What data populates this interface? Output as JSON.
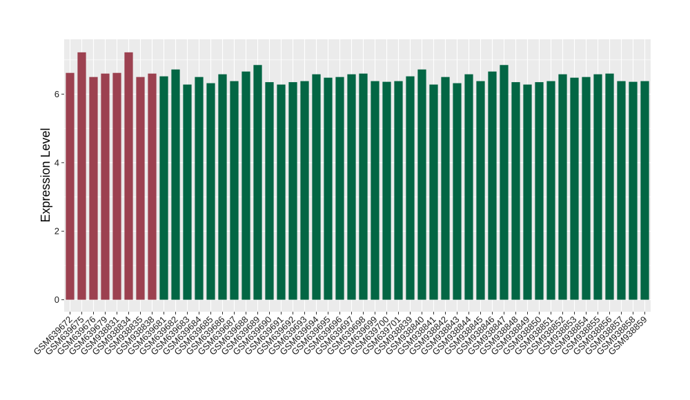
{
  "chart_data": {
    "type": "bar",
    "title": "",
    "xlabel": "",
    "ylabel": "Expression Level",
    "ylim": [
      -0.35,
      7.6
    ],
    "yticks": [
      0,
      2,
      4,
      6
    ],
    "grid": true,
    "legend": "none",
    "categories": [
      "GSM639672",
      "GSM639675",
      "GSM639676",
      "GSM639679",
      "GSM938831",
      "GSM938834",
      "GSM938835",
      "GSM938838",
      "GSM639681",
      "GSM639682",
      "GSM639683",
      "GSM639684",
      "GSM639685",
      "GSM639686",
      "GSM639687",
      "GSM639688",
      "GSM639689",
      "GSM639690",
      "GSM639691",
      "GSM639692",
      "GSM639693",
      "GSM639694",
      "GSM639695",
      "GSM639696",
      "GSM639697",
      "GSM639698",
      "GSM639699",
      "GSM639700",
      "GSM639701",
      "GSM938839",
      "GSM938840",
      "GSM938841",
      "GSM938842",
      "GSM938843",
      "GSM938844",
      "GSM938845",
      "GSM938846",
      "GSM938847",
      "GSM938848",
      "GSM938849",
      "GSM938850",
      "GSM938851",
      "GSM938852",
      "GSM938853",
      "GSM938854",
      "GSM938855",
      "GSM938856",
      "GSM938857",
      "GSM938858",
      "GSM938859"
    ],
    "values": [
      6.62,
      7.22,
      6.5,
      6.6,
      6.62,
      7.22,
      6.5,
      6.6,
      6.52,
      6.72,
      6.28,
      6.5,
      6.32,
      6.58,
      6.38,
      6.66,
      6.85,
      6.35,
      6.28,
      6.35,
      6.38,
      6.58,
      6.48,
      6.5,
      6.58,
      6.6,
      6.38,
      6.36,
      6.38,
      6.52,
      6.72,
      6.28,
      6.5,
      6.32,
      6.58,
      6.38,
      6.66,
      6.85,
      6.35,
      6.28,
      6.35,
      6.38,
      6.58,
      6.48,
      6.5,
      6.58,
      6.6,
      6.38,
      6.36,
      6.38
    ],
    "groups": [
      "red",
      "red",
      "red",
      "red",
      "red",
      "red",
      "red",
      "red",
      "green",
      "green",
      "green",
      "green",
      "green",
      "green",
      "green",
      "green",
      "green",
      "green",
      "green",
      "green",
      "green",
      "green",
      "green",
      "green",
      "green",
      "green",
      "green",
      "green",
      "green",
      "green",
      "green",
      "green",
      "green",
      "green",
      "green",
      "green",
      "green",
      "green",
      "green",
      "green",
      "green",
      "green",
      "green",
      "green",
      "green",
      "green",
      "green",
      "green",
      "green",
      "green"
    ],
    "colors": {
      "red": "#9c4150",
      "green": "#036644",
      "panel": "#ebebeb",
      "grid": "#ffffff"
    }
  }
}
